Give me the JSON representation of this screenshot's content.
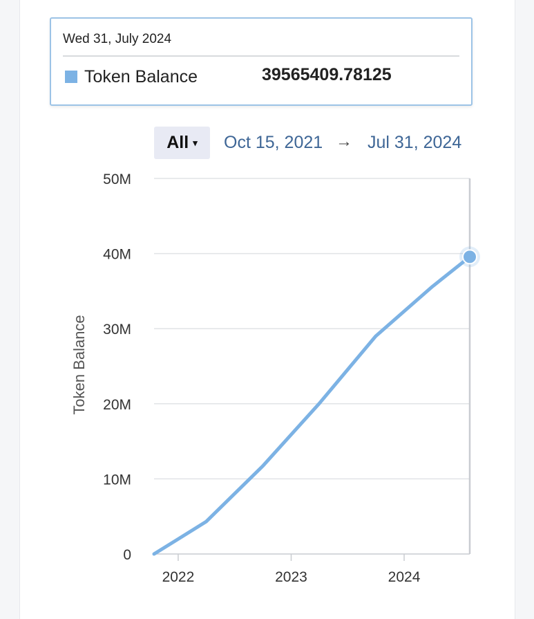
{
  "tooltip": {
    "date": "Wed 31, July 2024",
    "series": "Token Balance",
    "value": "39565409.78125"
  },
  "range_selector": {
    "selected": "All",
    "caret": "▾",
    "from": "Oct 15, 2021",
    "arrow": "→",
    "to": "Jul 31, 2024"
  },
  "colors": {
    "series": "#7cb2e4",
    "grid": "#e1e3e6",
    "axis": "#c9ccd1"
  },
  "chart_data": {
    "type": "line",
    "title": "",
    "ylabel": "Token Balance",
    "xlabel": "",
    "ylim": [
      0,
      50000000
    ],
    "y_ticks": [
      {
        "value": 0,
        "label": "0"
      },
      {
        "value": 10000000,
        "label": "10M"
      },
      {
        "value": 20000000,
        "label": "20M"
      },
      {
        "value": 30000000,
        "label": "30M"
      },
      {
        "value": 40000000,
        "label": "40M"
      },
      {
        "value": 50000000,
        "label": "50M"
      }
    ],
    "x_range": [
      "2021-10-15",
      "2024-07-31"
    ],
    "x_ticks": [
      {
        "date": "2022-01-01",
        "label": "2022"
      },
      {
        "date": "2023-01-01",
        "label": "2023"
      },
      {
        "date": "2024-01-01",
        "label": "2024"
      }
    ],
    "grid": true,
    "legend": "none",
    "series": [
      {
        "name": "Token Balance",
        "points": [
          {
            "x": "2021-10-15",
            "y": 0
          },
          {
            "x": "2022-04-01",
            "y": 4300000
          },
          {
            "x": "2022-10-01",
            "y": 11700000
          },
          {
            "x": "2023-04-01",
            "y": 20000000
          },
          {
            "x": "2023-10-01",
            "y": 29000000
          },
          {
            "x": "2024-04-01",
            "y": 35600000
          },
          {
            "x": "2024-07-31",
            "y": 39565409.78125
          }
        ]
      }
    ],
    "highlight": {
      "x": "2024-07-31",
      "y": 39565409.78125
    }
  }
}
